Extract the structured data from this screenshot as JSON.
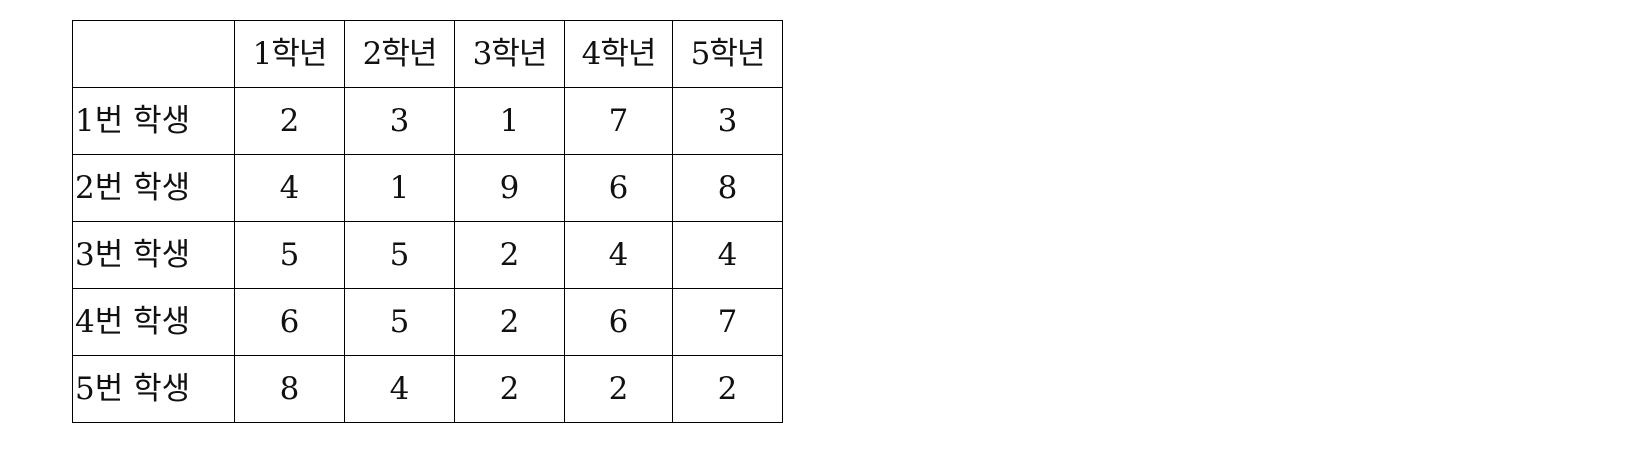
{
  "table": {
    "column_headers": [
      "1학년",
      "2학년",
      "3학년",
      "4학년",
      "5학년"
    ],
    "rows": [
      {
        "label": "1번 학생",
        "values": [
          "2",
          "3",
          "1",
          "7",
          "3"
        ]
      },
      {
        "label": "2번 학생",
        "values": [
          "4",
          "1",
          "9",
          "6",
          "8"
        ]
      },
      {
        "label": "3번 학생",
        "values": [
          "5",
          "5",
          "2",
          "4",
          "4"
        ]
      },
      {
        "label": "4번 학생",
        "values": [
          "6",
          "5",
          "2",
          "6",
          "7"
        ]
      },
      {
        "label": "5번 학생",
        "values": [
          "8",
          "4",
          "2",
          "2",
          "2"
        ]
      }
    ]
  }
}
